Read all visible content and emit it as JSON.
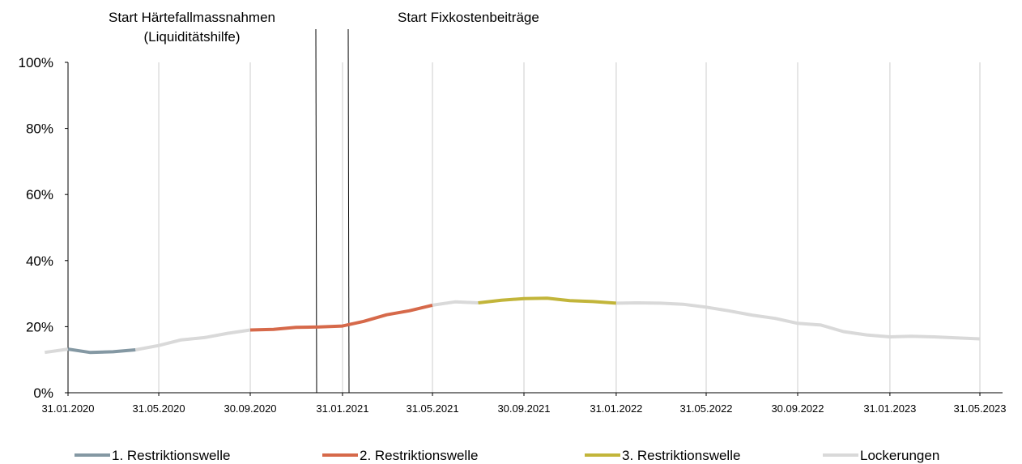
{
  "chart_data": {
    "type": "line",
    "x_tick_labels": [
      "31.01.2020",
      "31.05.2020",
      "30.09.2020",
      "31.01.2021",
      "31.05.2021",
      "30.09.2021",
      "31.01.2022",
      "31.05.2022",
      "30.09.2022",
      "31.01.2023",
      "31.05.2023"
    ],
    "y_tick_labels": [
      "0%",
      "20%",
      "40%",
      "60%",
      "80%",
      "100%"
    ],
    "ylim": [
      0,
      100
    ],
    "grid": "vertical",
    "legend_position": "bottom",
    "annotations": [
      {
        "text_lines": [
          "Start Härtefallmassnahmen",
          "(Liquiditätshilfe)"
        ],
        "x": "2020-12-23"
      },
      {
        "text_lines": [
          "Start Fixkostenbeiträge"
        ],
        "x": "2021-01-31"
      }
    ],
    "series": [
      {
        "name": "Lockerungen",
        "color": "#d9d9d9",
        "points": [
          [
            "2019-12-31",
            12.2
          ],
          [
            "2020-01-31",
            13.2
          ]
        ]
      },
      {
        "name": "1. Restriktionswelle",
        "color": "#8498a3",
        "points": [
          [
            "2020-01-31",
            13.2
          ],
          [
            "2020-02-29",
            12.2
          ],
          [
            "2020-03-31",
            12.4
          ],
          [
            "2020-04-30",
            13.0
          ]
        ]
      },
      {
        "name": "Lockerungen",
        "color": "#d9d9d9",
        "points": [
          [
            "2020-04-30",
            13.0
          ],
          [
            "2020-05-31",
            14.3
          ],
          [
            "2020-06-30",
            16.0
          ],
          [
            "2020-07-31",
            16.7
          ],
          [
            "2020-08-31",
            18.0
          ],
          [
            "2020-09-30",
            19.0
          ]
        ]
      },
      {
        "name": "2. Restriktionswelle",
        "color": "#d6694a",
        "points": [
          [
            "2020-09-30",
            19.0
          ],
          [
            "2020-10-31",
            19.2
          ],
          [
            "2020-11-30",
            19.8
          ],
          [
            "2020-12-31",
            19.9
          ],
          [
            "2021-01-31",
            20.2
          ],
          [
            "2021-02-28",
            21.6
          ],
          [
            "2021-03-31",
            23.6
          ],
          [
            "2021-04-30",
            24.8
          ],
          [
            "2021-05-31",
            26.5
          ]
        ]
      },
      {
        "name": "Lockerungen",
        "color": "#d9d9d9",
        "points": [
          [
            "2021-05-31",
            26.5
          ],
          [
            "2021-06-30",
            27.5
          ],
          [
            "2021-07-31",
            27.2
          ]
        ]
      },
      {
        "name": "3. Restriktionswelle",
        "color": "#c2b53a",
        "points": [
          [
            "2021-07-31",
            27.2
          ],
          [
            "2021-08-31",
            28.0
          ],
          [
            "2021-09-30",
            28.5
          ],
          [
            "2021-10-31",
            28.6
          ],
          [
            "2021-11-30",
            27.9
          ],
          [
            "2021-12-31",
            27.6
          ],
          [
            "2022-01-31",
            27.1
          ]
        ]
      },
      {
        "name": "Lockerungen",
        "color": "#d9d9d9",
        "points": [
          [
            "2022-01-31",
            27.1
          ],
          [
            "2022-02-28",
            27.2
          ],
          [
            "2022-03-31",
            27.1
          ],
          [
            "2022-04-30",
            26.8
          ],
          [
            "2022-05-31",
            25.9
          ],
          [
            "2022-06-30",
            24.8
          ],
          [
            "2022-07-31",
            23.5
          ],
          [
            "2022-08-31",
            22.5
          ],
          [
            "2022-09-30",
            21.0
          ],
          [
            "2022-10-31",
            20.5
          ],
          [
            "2022-11-30",
            18.5
          ],
          [
            "2022-12-31",
            17.5
          ],
          [
            "2023-01-31",
            16.9
          ],
          [
            "2023-02-28",
            17.1
          ],
          [
            "2023-03-31",
            16.9
          ],
          [
            "2023-04-30",
            16.6
          ],
          [
            "2023-05-31",
            16.3
          ]
        ]
      }
    ],
    "legend": [
      {
        "label": "1. Restriktionswelle",
        "color": "#8498a3"
      },
      {
        "label": "2. Restriktionswelle",
        "color": "#d6694a"
      },
      {
        "label": "3. Restriktionswelle",
        "color": "#c2b53a"
      },
      {
        "label": "Lockerungen",
        "color": "#d9d9d9"
      }
    ]
  }
}
